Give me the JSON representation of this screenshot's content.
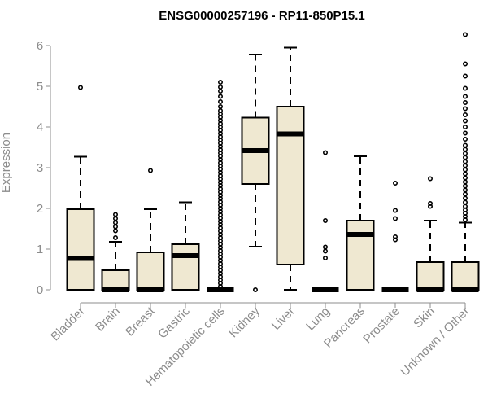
{
  "chart_data": {
    "type": "boxplot",
    "title": "ENSG00000257196 - RP11-850P15.1",
    "ylabel": "Expression",
    "xlabel": "",
    "ylim": [
      0,
      6
    ],
    "yticks": [
      0,
      1,
      2,
      3,
      4,
      5,
      6
    ],
    "grid": false,
    "colors": {
      "box_fill": "#efe8d1",
      "stroke": "#000000",
      "axis": "#8c8c8c"
    },
    "categories": [
      "Bladder",
      "Brain",
      "Breast",
      "Gastric",
      "Hematopoietic cells",
      "Kidney",
      "Liver",
      "Lung",
      "Pancreas",
      "Prostate",
      "Skin",
      "Unknown / Other"
    ],
    "boxes": [
      {
        "category": "Bladder",
        "q1": 0.0,
        "median": 0.77,
        "q3": 1.98,
        "whisker_low": 0.0,
        "whisker_high": 3.27,
        "outliers": [
          4.97
        ]
      },
      {
        "category": "Brain",
        "q1": 0.0,
        "median": 0.0,
        "q3": 0.48,
        "whisker_low": 0.0,
        "whisker_high": 1.18,
        "outliers": [
          1.28,
          1.45,
          1.55,
          1.65,
          1.75,
          1.85
        ]
      },
      {
        "category": "Breast",
        "q1": 0.0,
        "median": 0.0,
        "q3": 0.92,
        "whisker_low": 0.0,
        "whisker_high": 1.98,
        "outliers": [
          2.93
        ]
      },
      {
        "category": "Gastric",
        "q1": 0.0,
        "median": 0.84,
        "q3": 1.12,
        "whisker_low": 0.0,
        "whisker_high": 2.15,
        "outliers": []
      },
      {
        "category": "Hematopoietic cells",
        "q1": 0.0,
        "median": 0.0,
        "q3": 0.0,
        "whisker_low": 0.0,
        "whisker_high": 0.0,
        "outliers": [
          0.08,
          0.16,
          0.24,
          0.32,
          0.4,
          0.48,
          0.56,
          0.64,
          0.72,
          0.8,
          0.88,
          0.96,
          1.04,
          1.12,
          1.2,
          1.28,
          1.36,
          1.44,
          1.52,
          1.6,
          1.68,
          1.76,
          1.84,
          1.92,
          2.0,
          2.08,
          2.16,
          2.24,
          2.32,
          2.4,
          2.48,
          2.56,
          2.64,
          2.72,
          2.8,
          2.88,
          2.96,
          3.04,
          3.12,
          3.2,
          3.28,
          3.36,
          3.44,
          3.52,
          3.6,
          3.68,
          3.76,
          3.84,
          3.92,
          4.0,
          4.08,
          4.16,
          4.24,
          4.32,
          4.4,
          4.5,
          4.62,
          4.75,
          4.88,
          4.98,
          5.1
        ]
      },
      {
        "category": "Kidney",
        "q1": 2.6,
        "median": 3.42,
        "q3": 4.23,
        "whisker_low": 1.06,
        "whisker_high": 5.78,
        "outliers": [
          0.0
        ]
      },
      {
        "category": "Liver",
        "q1": 0.62,
        "median": 3.83,
        "q3": 4.5,
        "whisker_low": 0.0,
        "whisker_high": 5.95,
        "outliers": []
      },
      {
        "category": "Lung",
        "q1": 0.0,
        "median": 0.0,
        "q3": 0.0,
        "whisker_low": 0.0,
        "whisker_high": 0.0,
        "outliers": [
          0.78,
          0.95,
          1.05,
          1.7,
          3.37
        ]
      },
      {
        "category": "Pancreas",
        "q1": 0.0,
        "median": 1.36,
        "q3": 1.7,
        "whisker_low": 0.0,
        "whisker_high": 3.28,
        "outliers": []
      },
      {
        "category": "Prostate",
        "q1": 0.0,
        "median": 0.0,
        "q3": 0.0,
        "whisker_low": 0.0,
        "whisker_high": 0.0,
        "outliers": [
          1.23,
          1.3,
          1.75,
          1.95,
          2.62
        ]
      },
      {
        "category": "Skin",
        "q1": 0.0,
        "median": 0.0,
        "q3": 0.68,
        "whisker_low": 0.0,
        "whisker_high": 1.7,
        "outliers": [
          2.05,
          2.12,
          2.73
        ]
      },
      {
        "category": "Unknown / Other",
        "q1": 0.0,
        "median": 0.0,
        "q3": 0.68,
        "whisker_low": 0.0,
        "whisker_high": 1.65,
        "outliers": [
          1.72,
          1.8,
          1.88,
          1.96,
          2.05,
          2.15,
          2.25,
          2.35,
          2.45,
          2.55,
          2.65,
          2.75,
          2.85,
          2.95,
          3.05,
          3.15,
          3.25,
          3.35,
          3.45,
          3.55,
          3.7,
          3.85,
          4.0,
          4.15,
          4.3,
          4.45,
          4.6,
          4.75,
          4.95,
          5.25,
          5.55,
          6.27
        ]
      }
    ]
  }
}
